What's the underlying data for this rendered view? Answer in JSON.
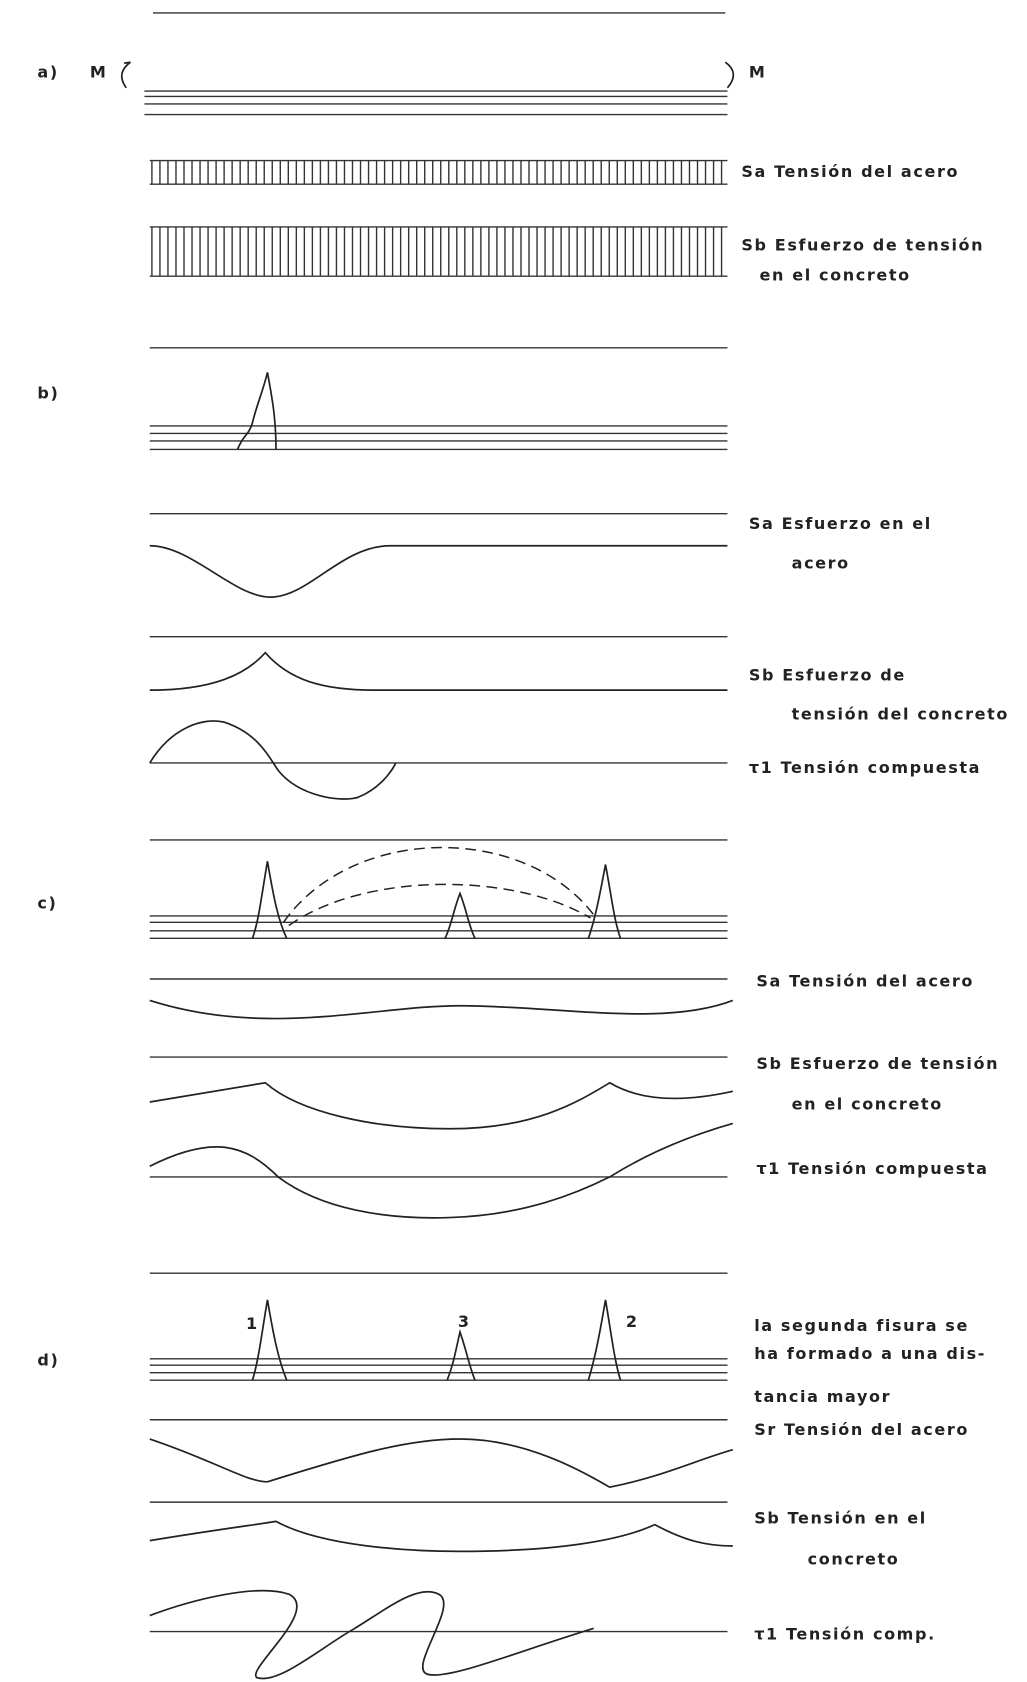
{
  "panels": [
    {
      "label": "a)",
      "moments": [
        "M",
        "M"
      ],
      "notes": [
        [
          "Sa Tensión del acero"
        ],
        [
          "Sb Esfuerzo de tensión",
          "en el concreto"
        ]
      ]
    },
    {
      "label": "b)",
      "notes": [
        [
          "Sa Esfuerzo en el",
          "acero"
        ],
        [
          "Sb Esfuerzo de",
          "tensión del concreto"
        ],
        [
          "τ1 Tensión compuesta"
        ]
      ]
    },
    {
      "label": "c)",
      "notes": [
        [
          "Sa Tensión del acero"
        ],
        [
          "Sb Esfuerzo de tensión",
          "en el concreto"
        ],
        [
          "τ1 Tensión compuesta"
        ]
      ]
    },
    {
      "label": "d)",
      "crack_numbers": [
        "1",
        "3",
        "2"
      ],
      "notes": [
        [
          "la segunda fisura se",
          "ha formado a una dis-",
          "tancia mayor"
        ],
        [
          "Sr Tensión del acero"
        ],
        [
          "Sb Tensión en el",
          "concreto"
        ],
        [
          "τ1 Tensión comp."
        ]
      ]
    }
  ]
}
